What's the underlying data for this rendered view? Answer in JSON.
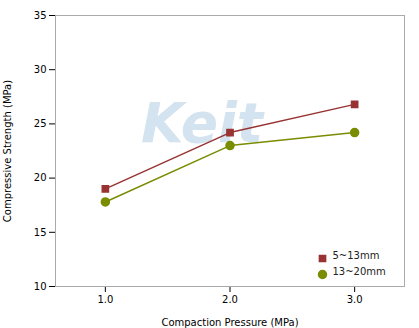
{
  "chart_data": {
    "type": "line",
    "x": [
      1,
      2,
      3
    ],
    "series": [
      {
        "name": "5~13mm",
        "color": "#993333",
        "marker": "square",
        "values": [
          19.0,
          24.2,
          26.8
        ]
      },
      {
        "name": "13~20mm",
        "color": "#7A8C00",
        "marker": "circle",
        "values": [
          17.8,
          23.0,
          24.2
        ]
      }
    ],
    "xlabel": "Compaction Pressure (MPa)",
    "ylabel": "Compressive Strength (MPa)",
    "xlim": [
      0.6,
      3.4
    ],
    "ylim": [
      10,
      35
    ],
    "xticks": [
      1,
      2,
      3
    ],
    "yticks": [
      10,
      15,
      20,
      25,
      30,
      35
    ],
    "annotations": [
      "Keit"
    ],
    "legend": "lower right",
    "grid": false
  }
}
